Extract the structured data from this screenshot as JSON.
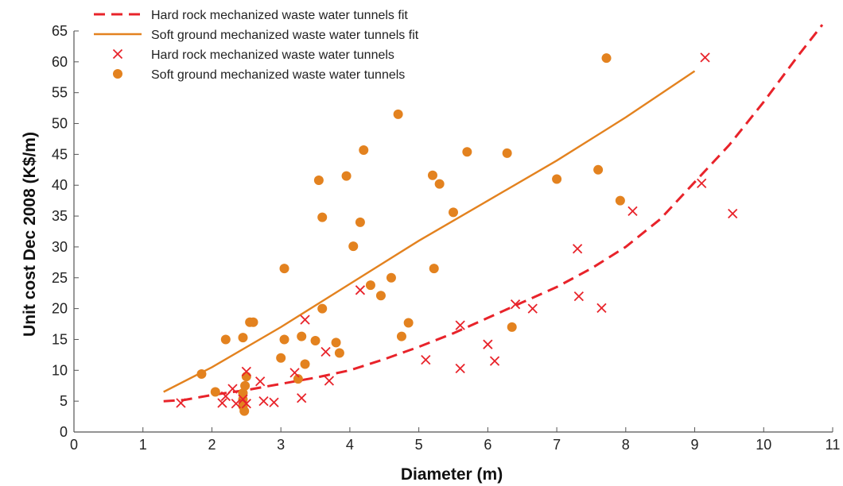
{
  "chart_data": {
    "type": "scatter",
    "title": "",
    "xlabel": "Diameter (m)",
    "ylabel": "Unit cost Dec 2008 (K$/m)",
    "xlim": [
      0,
      11
    ],
    "ylim": [
      0,
      65
    ],
    "xticks": [
      0,
      1,
      2,
      3,
      4,
      5,
      6,
      7,
      8,
      9,
      10,
      11
    ],
    "yticks": [
      0,
      5,
      10,
      15,
      20,
      25,
      30,
      35,
      40,
      45,
      50,
      55,
      60,
      65
    ],
    "grid": false,
    "legend_position": "top-left",
    "colors": {
      "hard_rock": "#e8232a",
      "soft_ground": "#e3821f",
      "axis": "#555555"
    },
    "series": [
      {
        "name": "Hard rock mechanized waste water tunnels fit",
        "kind": "line",
        "style": "dashed",
        "color": "#e8232a",
        "x": [
          1.3,
          1.6,
          2.0,
          2.5,
          3.0,
          3.5,
          4.0,
          4.5,
          5.0,
          5.5,
          6.0,
          6.5,
          7.0,
          7.5,
          8.0,
          8.5,
          9.0,
          9.5,
          10.0,
          10.5,
          10.85
        ],
        "y": [
          5.0,
          5.2,
          6.0,
          6.8,
          7.8,
          8.8,
          10.0,
          11.8,
          13.8,
          16.0,
          18.5,
          21.0,
          23.5,
          26.5,
          30.0,
          34.5,
          40.5,
          46.5,
          53.5,
          61.0,
          66.0
        ]
      },
      {
        "name": "Soft ground mechanized waste water tunnels fit",
        "kind": "line",
        "style": "solid",
        "color": "#e3821f",
        "x": [
          1.3,
          2.0,
          3.0,
          4.0,
          5.0,
          6.0,
          7.0,
          8.0,
          9.0
        ],
        "y": [
          6.5,
          10.5,
          17.0,
          24.0,
          31.0,
          37.5,
          44.0,
          51.0,
          58.5
        ]
      },
      {
        "name": "Hard rock mechanized waste water tunnels",
        "kind": "scatter",
        "marker": "x",
        "color": "#e8232a",
        "x": [
          1.55,
          2.15,
          2.2,
          2.3,
          2.35,
          2.45,
          2.5,
          2.5,
          2.7,
          2.75,
          2.9,
          3.2,
          3.3,
          3.35,
          3.65,
          3.7,
          4.15,
          5.1,
          5.6,
          5.6,
          6.0,
          6.1,
          6.4,
          6.65,
          7.3,
          7.32,
          7.65,
          8.1,
          9.1,
          9.15,
          9.55
        ],
        "y": [
          4.7,
          4.7,
          5.8,
          7.0,
          4.6,
          5.3,
          9.8,
          4.6,
          8.2,
          5.0,
          4.8,
          9.6,
          5.5,
          18.2,
          13.0,
          8.3,
          23.0,
          11.7,
          17.3,
          10.3,
          14.2,
          11.5,
          20.7,
          20.0,
          29.7,
          22.0,
          20.1,
          35.8,
          40.3,
          60.7,
          35.4
        ]
      },
      {
        "name": "Soft ground mechanized waste water tunnels",
        "kind": "scatter",
        "marker": "circle",
        "color": "#e3821f",
        "x": [
          1.85,
          2.05,
          2.2,
          2.45,
          2.45,
          2.45,
          2.45,
          2.47,
          2.48,
          2.5,
          2.55,
          2.6,
          3.0,
          3.05,
          3.05,
          3.25,
          3.3,
          3.35,
          3.5,
          3.55,
          3.6,
          3.6,
          3.8,
          3.85,
          3.95,
          4.05,
          4.15,
          4.2,
          4.3,
          4.45,
          4.6,
          4.7,
          4.75,
          4.85,
          5.2,
          5.22,
          5.3,
          5.5,
          5.7,
          6.28,
          6.35,
          7.0,
          7.6,
          7.72,
          7.92
        ],
        "y": [
          9.4,
          6.5,
          15.0,
          15.3,
          6.3,
          5.3,
          4.2,
          3.4,
          7.5,
          9.0,
          17.8,
          17.8,
          12.0,
          26.5,
          15.0,
          8.6,
          15.5,
          11.0,
          14.8,
          40.8,
          34.8,
          20.0,
          14.5,
          12.8,
          41.5,
          30.1,
          34.0,
          45.7,
          23.8,
          22.1,
          25.0,
          51.5,
          15.5,
          17.7,
          41.6,
          26.5,
          40.2,
          35.6,
          45.4,
          45.2,
          17.0,
          41.0,
          42.5,
          60.6,
          37.5
        ]
      }
    ]
  }
}
